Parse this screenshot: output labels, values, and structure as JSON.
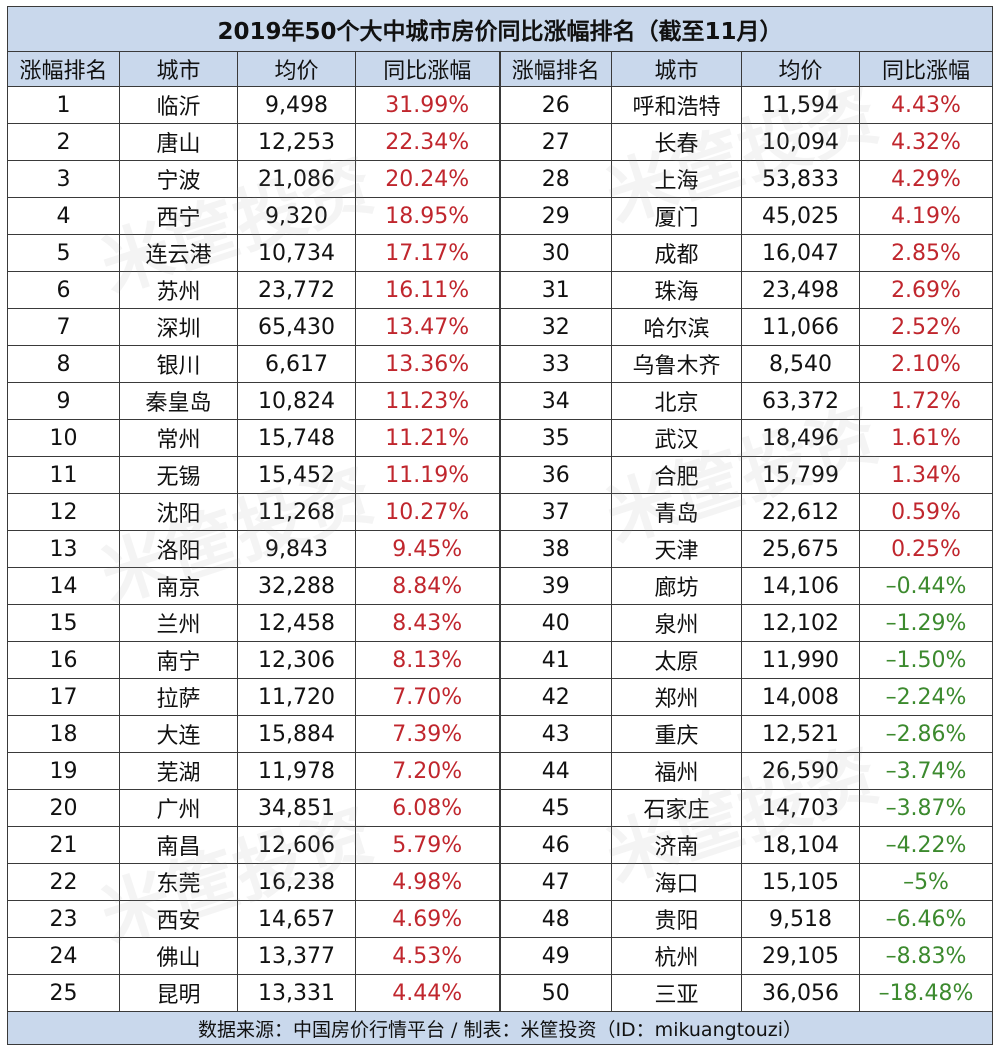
{
  "title": "2019年50个大中城市房价同比涨幅排名（截至11月）",
  "headers": [
    "涨幅排名",
    "城市",
    "均价",
    "同比涨幅",
    "涨幅排名",
    "城市",
    "均价",
    "同比涨幅"
  ],
  "rows": [
    {
      "l": {
        "rank": "1",
        "city": "临沂",
        "price": "9,498",
        "change": "31.99%"
      },
      "r": {
        "rank": "26",
        "city": "呼和浩特",
        "price": "11,594",
        "change": "4.43%"
      }
    },
    {
      "l": {
        "rank": "2",
        "city": "唐山",
        "price": "12,253",
        "change": "22.34%"
      },
      "r": {
        "rank": "27",
        "city": "长春",
        "price": "10,094",
        "change": "4.32%"
      }
    },
    {
      "l": {
        "rank": "3",
        "city": "宁波",
        "price": "21,086",
        "change": "20.24%"
      },
      "r": {
        "rank": "28",
        "city": "上海",
        "price": "53,833",
        "change": "4.29%"
      }
    },
    {
      "l": {
        "rank": "4",
        "city": "西宁",
        "price": "9,320",
        "change": "18.95%"
      },
      "r": {
        "rank": "29",
        "city": "厦门",
        "price": "45,025",
        "change": "4.19%"
      }
    },
    {
      "l": {
        "rank": "5",
        "city": "连云港",
        "price": "10,734",
        "change": "17.17%"
      },
      "r": {
        "rank": "30",
        "city": "成都",
        "price": "16,047",
        "change": "2.85%"
      }
    },
    {
      "l": {
        "rank": "6",
        "city": "苏州",
        "price": "23,772",
        "change": "16.11%"
      },
      "r": {
        "rank": "31",
        "city": "珠海",
        "price": "23,498",
        "change": "2.69%"
      }
    },
    {
      "l": {
        "rank": "7",
        "city": "深圳",
        "price": "65,430",
        "change": "13.47%"
      },
      "r": {
        "rank": "32",
        "city": "哈尔滨",
        "price": "11,066",
        "change": "2.52%"
      }
    },
    {
      "l": {
        "rank": "8",
        "city": "银川",
        "price": "6,617",
        "change": "13.36%"
      },
      "r": {
        "rank": "33",
        "city": "乌鲁木齐",
        "price": "8,540",
        "change": "2.10%"
      }
    },
    {
      "l": {
        "rank": "9",
        "city": "秦皇岛",
        "price": "10,824",
        "change": "11.23%"
      },
      "r": {
        "rank": "34",
        "city": "北京",
        "price": "63,372",
        "change": "1.72%"
      }
    },
    {
      "l": {
        "rank": "10",
        "city": "常州",
        "price": "15,748",
        "change": "11.21%"
      },
      "r": {
        "rank": "35",
        "city": "武汉",
        "price": "18,496",
        "change": "1.61%"
      }
    },
    {
      "l": {
        "rank": "11",
        "city": "无锡",
        "price": "15,452",
        "change": "11.19%"
      },
      "r": {
        "rank": "36",
        "city": "合肥",
        "price": "15,799",
        "change": "1.34%"
      }
    },
    {
      "l": {
        "rank": "12",
        "city": "沈阳",
        "price": "11,268",
        "change": "10.27%"
      },
      "r": {
        "rank": "37",
        "city": "青岛",
        "price": "22,612",
        "change": "0.59%"
      }
    },
    {
      "l": {
        "rank": "13",
        "city": "洛阳",
        "price": "9,843",
        "change": "9.45%"
      },
      "r": {
        "rank": "38",
        "city": "天津",
        "price": "25,675",
        "change": "0.25%"
      }
    },
    {
      "l": {
        "rank": "14",
        "city": "南京",
        "price": "32,288",
        "change": "8.84%"
      },
      "r": {
        "rank": "39",
        "city": "廊坊",
        "price": "14,106",
        "change": "–0.44%"
      }
    },
    {
      "l": {
        "rank": "15",
        "city": "兰州",
        "price": "12,458",
        "change": "8.43%"
      },
      "r": {
        "rank": "40",
        "city": "泉州",
        "price": "12,102",
        "change": "–1.29%"
      }
    },
    {
      "l": {
        "rank": "16",
        "city": "南宁",
        "price": "12,306",
        "change": "8.13%"
      },
      "r": {
        "rank": "41",
        "city": "太原",
        "price": "11,990",
        "change": "–1.50%"
      }
    },
    {
      "l": {
        "rank": "17",
        "city": "拉萨",
        "price": "11,720",
        "change": "7.70%"
      },
      "r": {
        "rank": "42",
        "city": "郑州",
        "price": "14,008",
        "change": "–2.24%"
      }
    },
    {
      "l": {
        "rank": "18",
        "city": "大连",
        "price": "15,884",
        "change": "7.39%"
      },
      "r": {
        "rank": "43",
        "city": "重庆",
        "price": "12,521",
        "change": "–2.86%"
      }
    },
    {
      "l": {
        "rank": "19",
        "city": "芜湖",
        "price": "11,978",
        "change": "7.20%"
      },
      "r": {
        "rank": "44",
        "city": "福州",
        "price": "26,590",
        "change": "–3.74%"
      }
    },
    {
      "l": {
        "rank": "20",
        "city": "广州",
        "price": "34,851",
        "change": "6.08%"
      },
      "r": {
        "rank": "45",
        "city": "石家庄",
        "price": "14,703",
        "change": "–3.87%"
      }
    },
    {
      "l": {
        "rank": "21",
        "city": "南昌",
        "price": "12,606",
        "change": "5.79%"
      },
      "r": {
        "rank": "46",
        "city": "济南",
        "price": "18,104",
        "change": "–4.22%"
      }
    },
    {
      "l": {
        "rank": "22",
        "city": "东莞",
        "price": "16,238",
        "change": "4.98%"
      },
      "r": {
        "rank": "47",
        "city": "海口",
        "price": "15,105",
        "change": "–5%"
      }
    },
    {
      "l": {
        "rank": "23",
        "city": "西安",
        "price": "14,657",
        "change": "4.69%"
      },
      "r": {
        "rank": "48",
        "city": "贵阳",
        "price": "9,518",
        "change": "–6.46%"
      }
    },
    {
      "l": {
        "rank": "24",
        "city": "佛山",
        "price": "13,377",
        "change": "4.53%"
      },
      "r": {
        "rank": "49",
        "city": "杭州",
        "price": "29,105",
        "change": "–8.83%"
      }
    },
    {
      "l": {
        "rank": "25",
        "city": "昆明",
        "price": "13,331",
        "change": "4.44%"
      },
      "r": {
        "rank": "50",
        "city": "三亚",
        "price": "36,056",
        "change": "–18.48%"
      }
    }
  ],
  "footer": "数据来源：中国房价行情平台 / 制表：米筐投资（ID：mikuangtouzi）",
  "watermark_text": "米筐投资",
  "colors": {
    "header_bg": "#c9d8ec",
    "positive": "#c0262d",
    "negative": "#3c8a2e",
    "border": "#3a3a3a"
  }
}
